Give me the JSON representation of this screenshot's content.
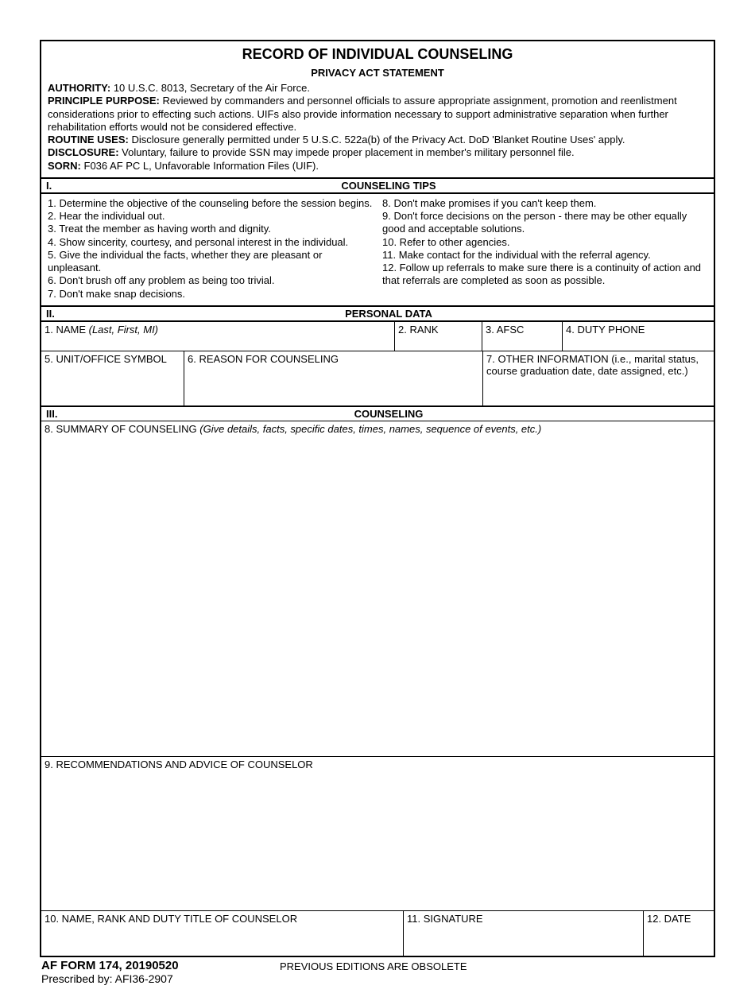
{
  "title": "RECORD OF INDIVIDUAL COUNSELING",
  "privacy": {
    "header": "PRIVACY ACT STATEMENT",
    "authority_label": "AUTHORITY:",
    "authority_text": "  10 U.S.C. 8013, Secretary of the Air Force.",
    "purpose_label": "PRINCIPLE PURPOSE:",
    "purpose_text": "  Reviewed by commanders and personnel officials to assure appropriate assignment, promotion and reenlistment considerations prior to effecting such actions.  UIFs also provide information necessary to support administrative separation when further rehabilitation efforts would not be considered effective.",
    "routine_label": "ROUTINE USES:",
    "routine_text": "  Disclosure generally permitted under 5 U.S.C. 522a(b) of the Privacy Act.  DoD 'Blanket Routine Uses' apply.",
    "disclosure_label": "DISCLOSURE:",
    "disclosure_text": "  Voluntary, failure to provide SSN may impede proper placement in member's military personnel file.",
    "sorn_label": "SORN:",
    "sorn_text": "  F036 AF PC L, Unfavorable Information Files (UIF)."
  },
  "sections": {
    "s1_num": "I.",
    "s1_title": "COUNSELING TIPS",
    "s2_num": "II.",
    "s2_title": "PERSONAL DATA",
    "s3_num": "III.",
    "s3_title": "COUNSELING"
  },
  "tips": {
    "left": [
      "1. Determine the objective of the counseling before the session begins.",
      "2. Hear the individual out.",
      "3. Treat the member as having worth and dignity.",
      "4. Show sincerity, courtesy, and personal interest in the individual.",
      "5. Give the individual the facts, whether they are pleasant or unpleasant.",
      "6. Don't brush off any problem as being too trivial.",
      "7. Don't make snap decisions."
    ],
    "right": [
      "8. Don't make promises if you can't keep them.",
      "9. Don't force decisions on the person - there may be other equally good and acceptable solutions.",
      "10. Refer to other agencies.",
      "11. Make contact for the individual with the referral agency.",
      "12. Follow up referrals to make sure there is a continuity of action and that referrals are completed as soon as possible."
    ]
  },
  "fields": {
    "name_label": "1. NAME",
    "name_hint": "  (Last, First, MI)",
    "rank_label": "2. RANK",
    "afsc_label": "3. AFSC",
    "duty_phone_label": "4. DUTY PHONE",
    "unit_label": "5. UNIT/OFFICE SYMBOL",
    "reason_label": "6. REASON FOR COUNSELING",
    "other_label": "7. OTHER INFORMATION (i.e., marital status, course graduation date, date assigned, etc.)",
    "summary_label": "8. SUMMARY OF COUNSELING",
    "summary_hint": " (Give details, facts, specific dates, times, names, sequence of events, etc.)",
    "rec_label": "9. RECOMMENDATIONS AND ADVICE OF COUNSELOR",
    "counselor_label": "10. NAME, RANK AND DUTY TITLE OF COUNSELOR",
    "signature_label": "11. SIGNATURE",
    "date_label": "12. DATE"
  },
  "footer": {
    "form_id": "AF FORM 174, 20190520",
    "prescribed": "Prescribed by: AFI36-2907",
    "obsolete": "PREVIOUS EDITIONS ARE OBSOLETE"
  }
}
